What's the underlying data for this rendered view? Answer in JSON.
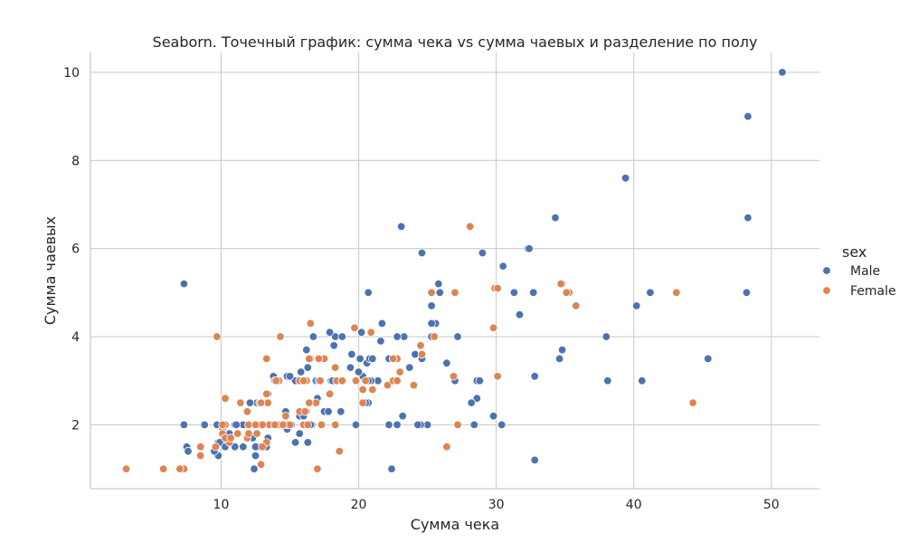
{
  "chart_data": {
    "type": "scatter",
    "title": "Seaborn. Точечный график: сумма чека vs сумма чаевых и разделение по полу",
    "xlabel": "Сумма чека",
    "ylabel": "Сумма чаевых",
    "xlim": [
      0.5,
      53.5
    ],
    "ylim": [
      0.55,
      10.45
    ],
    "xticks": [
      10,
      20,
      30,
      40,
      50
    ],
    "yticks": [
      2,
      4,
      6,
      8,
      10
    ],
    "grid": true,
    "legend": {
      "title": "sex",
      "placement": "right"
    },
    "series": [
      {
        "name": "Male",
        "color": "#4c72b0",
        "points": [
          [
            10.3,
            1.7
          ],
          [
            21.0,
            3.5
          ],
          [
            23.7,
            3.3
          ],
          [
            25.3,
            4.7
          ],
          [
            8.8,
            2.0
          ],
          [
            26.9,
            3.1
          ],
          [
            15.0,
            2.0
          ],
          [
            14.8,
            3.1
          ],
          [
            10.3,
            1.5
          ],
          [
            35.3,
            5.0
          ],
          [
            15.4,
            1.6
          ],
          [
            18.4,
            3.0
          ],
          [
            24.1,
            3.6
          ],
          [
            16.3,
            1.6
          ],
          [
            17.5,
            2.3
          ],
          [
            20.7,
            5.0
          ],
          [
            16.7,
            4.0
          ],
          [
            17.0,
            2.6
          ],
          [
            12.9,
            2.5
          ],
          [
            20.6,
            3.4
          ],
          [
            9.6,
            1.5
          ],
          [
            30.4,
            2.0
          ],
          [
            18.8,
            3.0
          ],
          [
            15.0,
            2.0
          ],
          [
            21.6,
            3.9
          ],
          [
            15.4,
            3.0
          ],
          [
            16.9,
            3.0
          ],
          [
            20.1,
            3.5
          ],
          [
            15.8,
            3.0
          ],
          [
            31.3,
            5.0
          ],
          [
            17.8,
            2.3
          ],
          [
            9.8,
            1.3
          ],
          [
            12.3,
            1.7
          ],
          [
            23.1,
            6.5
          ],
          [
            28.6,
            3.0
          ],
          [
            21.7,
            4.3
          ],
          [
            11.6,
            1.5
          ],
          [
            12.5,
            1.3
          ],
          [
            34.8,
            3.7
          ],
          [
            18.2,
            3.8
          ],
          [
            17.3,
            2.0
          ],
          [
            20.5,
            3.0
          ],
          [
            19.4,
            3.3
          ],
          [
            18.3,
            4.0
          ],
          [
            25.8,
            5.2
          ],
          [
            48.3,
            9.0
          ],
          [
            20.7,
            2.5
          ],
          [
            28.8,
            3.0
          ],
          [
            7.3,
            2.0
          ],
          [
            22.8,
            2.0
          ],
          [
            18.7,
            2.3
          ],
          [
            19.5,
            3.6
          ],
          [
            32.7,
            5.0
          ],
          [
            23.3,
            4.0
          ],
          [
            13.4,
            2.7
          ],
          [
            10.1,
            2.0
          ],
          [
            30.0,
            5.1
          ],
          [
            38.0,
            4.0
          ],
          [
            39.4,
            7.6
          ],
          [
            26.4,
            3.4
          ],
          [
            44.3,
            2.5
          ],
          [
            48.2,
            5.0
          ],
          [
            25.3,
            4.0
          ],
          [
            13.8,
            3.1
          ],
          [
            20.8,
            3.5
          ],
          [
            32.3,
            6.0
          ],
          [
            21.4,
            3.0
          ],
          [
            40.2,
            4.7
          ],
          [
            13.4,
            1.7
          ],
          [
            11.0,
            2.0
          ],
          [
            24.6,
            5.9
          ],
          [
            16.6,
            2.0
          ],
          [
            12.6,
            2.5
          ],
          [
            20.2,
            4.1
          ],
          [
            34.3,
            6.7
          ],
          [
            27.2,
            4.0
          ],
          [
            22.2,
            3.5
          ],
          [
            32.4,
            6.0
          ],
          [
            28.6,
            2.6
          ],
          [
            22.8,
            4.0
          ],
          [
            25.0,
            2.0
          ],
          [
            38.1,
            3.0
          ],
          [
            34.6,
            3.5
          ],
          [
            17.9,
            4.1
          ],
          [
            9.8,
            1.6
          ],
          [
            9.7,
            2.0
          ],
          [
            15.0,
            3.1
          ],
          [
            21.0,
            3.5
          ],
          [
            7.5,
            1.5
          ],
          [
            8.5,
            1.5
          ],
          [
            13.4,
            2.0
          ],
          [
            20.9,
            3.0
          ],
          [
            12.0,
            2.0
          ],
          [
            15.7,
            2.2
          ],
          [
            29.0,
            5.9
          ],
          [
            16.3,
            2.0
          ],
          [
            12.8,
            1.5
          ],
          [
            40.6,
            3.0
          ],
          [
            9.9,
            1.6
          ],
          [
            11.6,
            2.0
          ],
          [
            25.6,
            4.3
          ],
          [
            16.0,
            2.2
          ],
          [
            28.2,
            2.5
          ],
          [
            18.3,
            2.0
          ],
          [
            24.6,
            3.5
          ],
          [
            31.7,
            4.5
          ],
          [
            23.2,
            2.2
          ],
          [
            12.5,
            1.5
          ],
          [
            15.1,
            2.0
          ],
          [
            50.8,
            10.0
          ],
          [
            15.8,
            3.2
          ],
          [
            18.8,
            4.0
          ],
          [
            25.9,
            5.0
          ],
          [
            27.0,
            3.0
          ],
          [
            12.0,
            2.0
          ],
          [
            20.3,
            3.1
          ],
          [
            11.0,
            1.5
          ],
          [
            18.0,
            3.0
          ],
          [
            7.3,
            5.2
          ],
          [
            13.0,
            2.0
          ],
          [
            13.5,
            2.0
          ],
          [
            16.2,
            3.7
          ],
          [
            24.5,
            2.0
          ],
          [
            22.2,
            2.0
          ],
          [
            41.2,
            5.0
          ],
          [
            20.7,
            3.0
          ],
          [
            16.5,
            2.0
          ],
          [
            30.5,
            5.6
          ],
          [
            11.1,
            2.0
          ],
          [
            14.8,
            2.0
          ],
          [
            17.1,
            3.0
          ],
          [
            45.4,
            3.5
          ],
          [
            14.7,
            2.3
          ],
          [
            29.8,
            2.2
          ],
          [
            13.6,
            2.0
          ],
          [
            32.8,
            3.1
          ],
          [
            7.6,
            1.4
          ],
          [
            13.3,
            1.5
          ],
          [
            18.1,
            3.0
          ],
          [
            24.3,
            2.0
          ],
          [
            12.4,
            1.0
          ],
          [
            20.5,
            2.5
          ],
          [
            16.3,
            3.3
          ],
          [
            25.3,
            4.3
          ],
          [
            32.8,
            1.2
          ],
          [
            48.3,
            6.7
          ],
          [
            19.8,
            2.0
          ],
          [
            20.0,
            3.2
          ],
          [
            18.4,
            3.0
          ],
          [
            35.8,
            4.7
          ],
          [
            15.7,
            1.8
          ],
          [
            10.3,
            1.5
          ],
          [
            22.4,
            1.0
          ],
          [
            48.2,
            5.0
          ],
          [
            9.5,
            1.4
          ],
          [
            10.6,
            1.8
          ],
          [
            14.8,
            1.9
          ],
          [
            12.1,
            2.5
          ],
          [
            13.9,
            3.0
          ],
          [
            28.4,
            2.0
          ]
        ]
      },
      {
        "name": "Female",
        "color": "#dd8452",
        "points": [
          [
            17.0,
            1.0
          ],
          [
            24.6,
            3.6
          ],
          [
            35.3,
            5.0
          ],
          [
            14.8,
            2.0
          ],
          [
            16.9,
            2.5
          ],
          [
            19.7,
            4.2
          ],
          [
            17.5,
            3.5
          ],
          [
            9.7,
            4.0
          ],
          [
            26.9,
            3.1
          ],
          [
            22.8,
            3.5
          ],
          [
            25.3,
            5.0
          ],
          [
            8.5,
            1.5
          ],
          [
            19.8,
            3.0
          ],
          [
            15.7,
            2.3
          ],
          [
            10.1,
            1.9
          ],
          [
            43.1,
            5.0
          ],
          [
            16.5,
            4.3
          ],
          [
            12.4,
            2.0
          ],
          [
            26.4,
            1.5
          ],
          [
            35.8,
            4.7
          ],
          [
            18.4,
            3.0
          ],
          [
            22.5,
            3.5
          ],
          [
            14.3,
            4.0
          ],
          [
            13.4,
            2.5
          ],
          [
            21.0,
            2.8
          ],
          [
            14.0,
            3.0
          ],
          [
            7.3,
            1.0
          ],
          [
            13.0,
            2.0
          ],
          [
            17.9,
            2.7
          ],
          [
            14.1,
            2.0
          ],
          [
            16.4,
            2.5
          ],
          [
            3.1,
            1.0
          ],
          [
            15.0,
            2.0
          ],
          [
            20.3,
            2.8
          ],
          [
            10.6,
            1.6
          ],
          [
            12.8,
            2.0
          ],
          [
            13.3,
            1.6
          ],
          [
            24.0,
            2.9
          ],
          [
            16.0,
            2.0
          ],
          [
            12.0,
            2.0
          ],
          [
            10.3,
            2.6
          ],
          [
            22.1,
            2.9
          ],
          [
            11.9,
            1.7
          ],
          [
            34.8,
            5.2
          ],
          [
            18.3,
            3.3
          ],
          [
            13.3,
            2.7
          ],
          [
            29.9,
            5.1
          ],
          [
            23.0,
            3.2
          ],
          [
            17.5,
            3.5
          ],
          [
            10.3,
            2.0
          ],
          [
            30.1,
            3.1
          ],
          [
            9.6,
            1.5
          ],
          [
            16.2,
            3.0
          ],
          [
            13.8,
            2.0
          ],
          [
            11.4,
            2.5
          ],
          [
            18.4,
            3.0
          ],
          [
            28.1,
            6.5
          ],
          [
            27.0,
            5.0
          ],
          [
            18.6,
            1.4
          ],
          [
            15.7,
            3.0
          ],
          [
            20.5,
            3.0
          ],
          [
            16.5,
            3.5
          ],
          [
            13.3,
            3.5
          ],
          [
            8.5,
            1.3
          ],
          [
            12.5,
            2.0
          ],
          [
            16.0,
            3.0
          ],
          [
            10.1,
            2.0
          ],
          [
            10.1,
            1.8
          ],
          [
            12.9,
            1.1
          ],
          [
            16.4,
            3.5
          ],
          [
            10.3,
            1.7
          ],
          [
            29.8,
            4.2
          ],
          [
            20.9,
            4.1
          ],
          [
            11.9,
            2.3
          ],
          [
            22.5,
            3.0
          ],
          [
            30.1,
            5.1
          ],
          [
            16.2,
            2.3
          ],
          [
            24.5,
            3.8
          ],
          [
            13.5,
            2.0
          ],
          [
            14.7,
            2.2
          ],
          [
            17.2,
            3.0
          ],
          [
            12.6,
            1.8
          ],
          [
            25.5,
            4.0
          ],
          [
            11.2,
            1.8
          ],
          [
            14.5,
            2.0
          ],
          [
            17.1,
            3.5
          ],
          [
            22.8,
            3.0
          ],
          [
            20.3,
            2.5
          ],
          [
            12.0,
            1.8
          ],
          [
            44.3,
            2.5
          ],
          [
            27.2,
            2.0
          ],
          [
            14.2,
            3.0
          ],
          [
            34.7,
            5.2
          ],
          [
            5.8,
            1.0
          ],
          [
            13.0,
            2.0
          ],
          [
            18.8,
            3.0
          ],
          [
            16.1,
            2.3
          ],
          [
            35.1,
            5.0
          ],
          [
            12.8,
            2.5
          ],
          [
            17.3,
            2.0
          ],
          [
            12.5,
            2.0
          ],
          [
            12.9,
            2.5
          ],
          [
            13.9,
            2.0
          ],
          [
            10.7,
            1.7
          ],
          [
            7.0,
            1.0
          ],
          [
            18.3,
            2.0
          ],
          [
            16.3,
            2.0
          ],
          [
            22.5,
            3.5
          ],
          [
            14.0,
            3.0
          ],
          [
            13.0,
            1.5
          ]
        ]
      }
    ]
  }
}
